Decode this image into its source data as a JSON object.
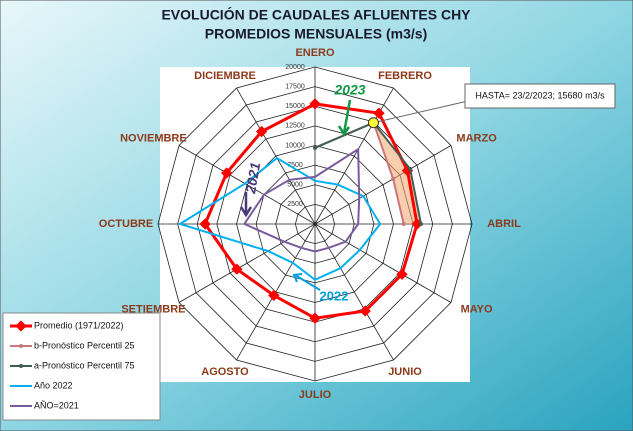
{
  "chart_data": {
    "type": "radar",
    "title": "EVOLUCIÓN DE CAUDALES AFLUENTES CHY",
    "subtitle": "PROMEDIOS MENSUALES (m3/s)",
    "categories": [
      "ENERO",
      "FEBRERO",
      "MARZO",
      "ABRIL",
      "MAYO",
      "JUNIO",
      "JULIO",
      "AGOSTO",
      "SETIEMBRE",
      "OCTUBRE",
      "NOVIEMBRE",
      "DICIEMBRE"
    ],
    "ylim": [
      0,
      20000
    ],
    "yticks": [
      2500,
      5000,
      7500,
      10000,
      12500,
      15000,
      17500,
      20000
    ],
    "grid": true,
    "legend": "bottom-left",
    "series": [
      {
        "name": "Promedio (1971/2022)",
        "color": "#ff0000",
        "values": [
          15300,
          16300,
          13600,
          13000,
          12800,
          12800,
          12000,
          10500,
          11500,
          14000,
          13000,
          13600
        ]
      },
      {
        "name": "b-Pronóstico Percentil 25",
        "color": "#c87878",
        "values": [
          9700,
          14900,
          11500,
          11300,
          null,
          null,
          null,
          null,
          null,
          null,
          null,
          null
        ]
      },
      {
        "name": "a-Pronóstico Percentil 75",
        "color": "#3f5f50",
        "values": [
          9700,
          14900,
          14000,
          13500,
          null,
          null,
          null,
          null,
          null,
          null,
          null,
          null
        ]
      },
      {
        "name": "Año 2022",
        "color": "#00b0f0",
        "values": [
          5500,
          5800,
          7100,
          8300,
          6600,
          6500,
          7100,
          5700,
          6900,
          17200,
          10300,
          9700
        ]
      },
      {
        "name": "AÑO=2021",
        "color": "#7a5c9e",
        "values": [
          6000,
          11000,
          6500,
          5500,
          4500,
          3500,
          3500,
          3500,
          4500,
          9000,
          7500,
          6500
        ]
      }
    ],
    "annotations": [
      "2023",
      "2021",
      "2022",
      "HASTA= 23/2/2023; 15680 m3/s"
    ]
  }
}
